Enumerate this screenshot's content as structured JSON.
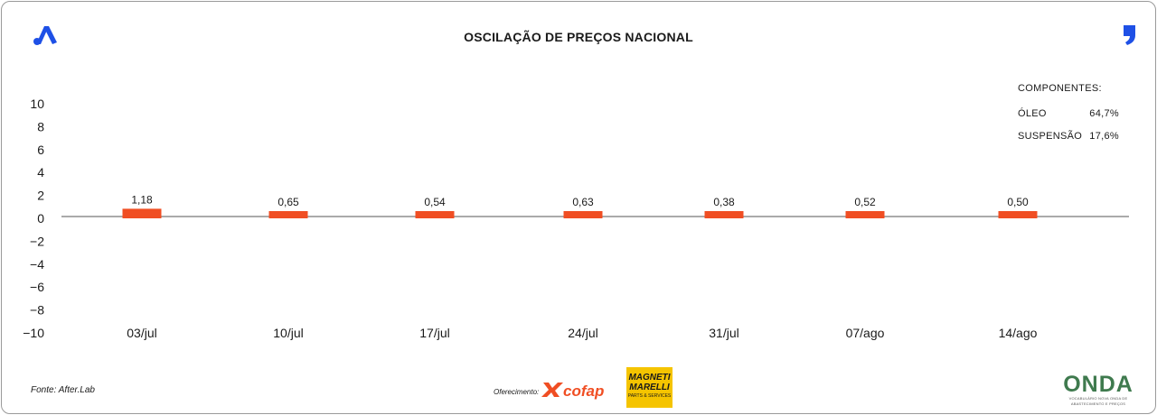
{
  "chart_data": {
    "type": "bar",
    "title": "OSCILAÇÃO DE PREÇOS NACIONAL",
    "xlabel": "",
    "ylabel": "",
    "categories": [
      "03/jul",
      "10/jul",
      "17/jul",
      "24/jul",
      "31/jul",
      "07/ago",
      "14/ago"
    ],
    "values": [
      1.18,
      0.65,
      0.54,
      0.63,
      0.38,
      0.52,
      0.5
    ],
    "value_labels": [
      "1,18",
      "0,65",
      "0,54",
      "0,63",
      "0,38",
      "0,52",
      "0,50"
    ],
    "ylim": [
      -10,
      10
    ],
    "yticks": [
      10,
      8,
      6,
      4,
      2,
      0,
      -2,
      -4,
      -6,
      -8,
      -10
    ],
    "ytick_labels": [
      "10",
      "8",
      "6",
      "4",
      "2",
      "0",
      "−2",
      "−4",
      "−6",
      "−8",
      "−10"
    ],
    "grid": false,
    "legend_placement": "top-right",
    "bar_color": "#f04e23"
  },
  "legend": {
    "heading": "COMPONENTES:",
    "items": [
      {
        "label": "ÓLEO",
        "value": "64,7%"
      },
      {
        "label": "SUSPENSÃO",
        "value": "17,6%"
      }
    ]
  },
  "footer": {
    "source": "Fonte: After.Lab",
    "sponsor_label": "Oferecimento:",
    "cofap": "cofap",
    "magneti_line1": "MAGNETI",
    "magneti_line2": "MARELLI",
    "magneti_line3": "PARTS & SERVICES",
    "onda": "ONDA",
    "onda_tagline": "VOCABULÁRIO NOVA ONDA DE ABASTECIMENTO E PREÇOS"
  },
  "colors": {
    "accent_blue": "#1e50e6",
    "bar": "#f04e23",
    "magneti_yellow": "#f5c400",
    "onda_green": "#3f7a4e"
  },
  "icons": {
    "left_logo": "brand-a-icon",
    "right_logo": "comma-icon"
  }
}
